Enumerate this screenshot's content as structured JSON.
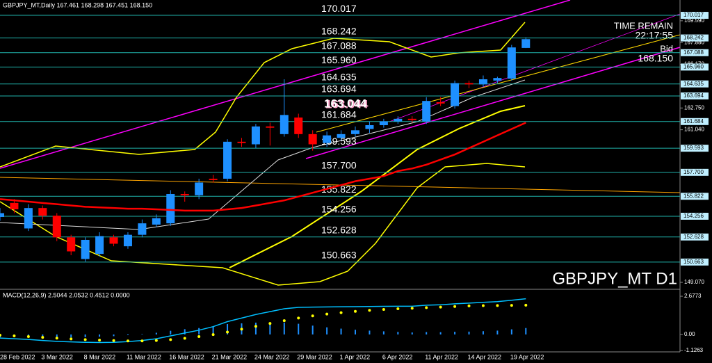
{
  "chart_data": [
    {
      "type": "candlestick",
      "header": "GBPJPY_MT,Daily 167.461 168.298 167.451 168.150",
      "title": "GBPJPY_MT D1",
      "time_remain_label": "TIME REMAIN",
      "time_remain": "22:17:55",
      "bid_label": "Bid",
      "bid": {
        "value": 168.15,
        "label": "168.150"
      },
      "annotation": 163.044,
      "categories": [
        "28 Feb 2022",
        null,
        null,
        "3 Mar 2022",
        null,
        null,
        "8 Mar 2022",
        null,
        null,
        "11 Mar 2022",
        null,
        null,
        "16 Mar 2022",
        null,
        null,
        "21 Mar 2022",
        null,
        null,
        "24 Mar 2022",
        null,
        null,
        "29 Mar 2022",
        null,
        null,
        "1 Apr 2022",
        null,
        null,
        "6 Apr 2022",
        null,
        null,
        "11 Apr 2022",
        null,
        null,
        "14 Apr 2022",
        null,
        null,
        "19 Apr 2022",
        null
      ],
      "open": [
        154.2,
        155.3,
        153.3,
        154.9,
        154.3,
        152.6,
        150.9,
        151.3,
        152.6,
        151.9,
        152.8,
        153.6,
        153.7,
        156.0,
        155.9,
        157.2,
        157.2,
        160.1,
        159.9,
        161.3,
        160.7,
        162.0,
        160.7,
        160.0,
        160.4,
        160.7,
        161.1,
        161.4,
        161.7,
        161.9,
        161.7,
        163.2,
        162.9,
        164.7,
        164.6,
        164.9,
        165.05,
        167.461
      ],
      "high": [
        154.9,
        155.6,
        155.2,
        155.1,
        154.5,
        152.8,
        152.6,
        153.0,
        152.8,
        153.0,
        154.0,
        154.4,
        156.3,
        156.2,
        157.2,
        157.5,
        160.3,
        160.4,
        161.5,
        161.6,
        165.0,
        162.3,
        161.0,
        160.9,
        161.0,
        161.3,
        161.7,
        161.9,
        162.1,
        162.1,
        163.6,
        163.6,
        164.9,
        164.9,
        165.3,
        165.2,
        167.7,
        168.298
      ],
      "low": [
        153.9,
        154.5,
        153.1,
        154.0,
        152.3,
        151.2,
        150.7,
        151.1,
        151.9,
        151.7,
        152.6,
        153.4,
        153.5,
        155.4,
        155.6,
        156.9,
        157.0,
        159.7,
        159.6,
        159.8,
        160.5,
        160.4,
        159.4,
        159.7,
        160.2,
        160.5,
        160.8,
        161.2,
        161.5,
        161.6,
        161.5,
        162.9,
        162.7,
        164.3,
        164.4,
        164.7,
        164.9,
        167.451
      ],
      "close": [
        154.5,
        154.8,
        154.9,
        154.3,
        152.6,
        151.5,
        152.4,
        152.7,
        152.1,
        152.8,
        153.7,
        154.1,
        156.0,
        155.9,
        156.9,
        157.1,
        160.1,
        160.0,
        161.3,
        161.2,
        162.2,
        160.7,
        159.9,
        160.6,
        160.7,
        161.0,
        161.4,
        161.7,
        161.9,
        161.8,
        163.3,
        163.1,
        164.7,
        164.6,
        165.0,
        165.1,
        167.5,
        168.15
      ],
      "up_color": "#1e90ff",
      "down_color": "#ff0000",
      "ma": {
        "color": "#ff0000",
        "values": [
          155.6,
          155.5,
          155.4,
          155.3,
          155.2,
          155.1,
          155.0,
          154.95,
          154.9,
          154.85,
          154.85,
          154.8,
          154.75,
          154.7,
          154.7,
          154.7,
          154.8,
          154.9,
          155.1,
          155.3,
          155.5,
          155.8,
          156.1,
          156.4,
          156.7,
          157.0,
          157.2,
          157.4,
          157.8,
          158.0,
          158.3,
          158.7,
          159.1,
          159.6,
          160.1,
          160.6,
          161.1,
          161.6
        ]
      },
      "ylim": [
        148.58,
        171.22
      ],
      "yticks": [
        {
          "value": 169.59,
          "label": "169.590"
        },
        {
          "value": 167.88,
          "label": "167.880"
        },
        {
          "value": 166.17,
          "label": "166.170"
        },
        {
          "value": 162.75,
          "label": "162.750"
        },
        {
          "value": 161.04,
          "label": "161.040"
        },
        {
          "value": 149.07,
          "label": "149.070"
        }
      ],
      "levels": [
        170.017,
        168.242,
        167.088,
        {
          "value": 165.96,
          "label": "165.960"
        },
        164.635,
        163.694,
        161.684,
        159.593,
        {
          "value": 157.7,
          "label": "157.700"
        },
        155.822,
        154.256,
        152.628,
        150.663
      ],
      "level_color": "#20b2aa"
    },
    {
      "type": "macd",
      "title": "MACD(12,26,9) 2.5044 2.0532 0.4512 0.0000",
      "histogram": {
        "color": "#1e90ff",
        "values": [
          -0.2,
          -0.2,
          -0.2,
          -0.22,
          -0.22,
          -0.21,
          -0.19,
          -0.16,
          -0.12,
          -0.05,
          0.03,
          0.12,
          0.26,
          0.37,
          0.45,
          0.56,
          0.73,
          0.78,
          0.83,
          0.83,
          0.83,
          0.75,
          0.62,
          0.5,
          0.41,
          0.33,
          0.27,
          0.22,
          0.18,
          0.14,
          0.17,
          0.16,
          0.19,
          0.2,
          0.23,
          0.27,
          0.36,
          0.4512
        ]
      },
      "main": {
        "color": "#00bfff",
        "values": [
          -0.25,
          -0.3,
          -0.35,
          -0.42,
          -0.48,
          -0.52,
          -0.55,
          -0.56,
          -0.55,
          -0.5,
          -0.42,
          -0.3,
          -0.1,
          0.1,
          0.3,
          0.55,
          0.9,
          1.15,
          1.4,
          1.6,
          1.8,
          1.9,
          1.92,
          1.93,
          1.94,
          1.95,
          1.96,
          1.97,
          1.98,
          1.98,
          2.05,
          2.08,
          2.15,
          2.2,
          2.25,
          2.3,
          2.4,
          2.5044
        ]
      },
      "signal": {
        "color": "#ffff00",
        "values": [
          -0.05,
          -0.1,
          -0.15,
          -0.2,
          -0.26,
          -0.31,
          -0.36,
          -0.4,
          -0.43,
          -0.45,
          -0.45,
          -0.42,
          -0.36,
          -0.27,
          -0.15,
          -0.01,
          0.17,
          0.37,
          0.57,
          0.77,
          0.97,
          1.15,
          1.3,
          1.43,
          1.53,
          1.62,
          1.69,
          1.75,
          1.8,
          1.84,
          1.88,
          1.92,
          1.96,
          2.0,
          2.02,
          2.03,
          2.04,
          2.0532
        ]
      },
      "ylim": [
        -1.22,
        3.02
      ],
      "yticks": [
        2.6773,
        {
          "value": 0,
          "label": "0.00"
        },
        -1.1263
      ]
    }
  ]
}
